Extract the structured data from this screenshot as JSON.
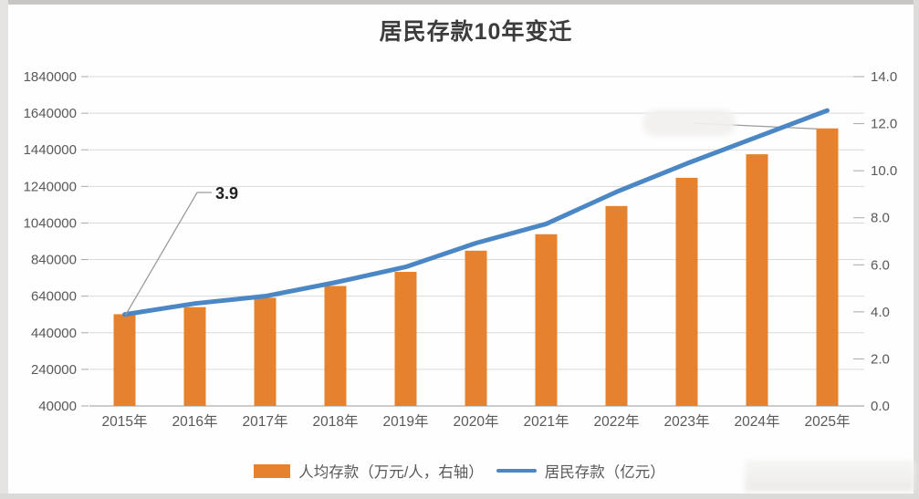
{
  "chart_data": {
    "type": "combo",
    "title": "居民存款10年变迁",
    "categories": [
      "2015年",
      "2016年",
      "2017年",
      "2018年",
      "2019年",
      "2020年",
      "2021年",
      "2022年",
      "2023年",
      "2024年",
      "2025年"
    ],
    "series": [
      {
        "name": "人均存款（万元/人，右轴）",
        "type": "bar",
        "axis": "right",
        "color": "#e6822e",
        "values": [
          3.9,
          4.2,
          4.6,
          5.1,
          5.7,
          6.6,
          7.3,
          8.5,
          9.7,
          10.7,
          11.8
        ]
      },
      {
        "name": "居民存款（亿元）",
        "type": "line",
        "axis": "left",
        "color": "#4c87c5",
        "values": [
          540000,
          600000,
          640000,
          715000,
          800000,
          930000,
          1035000,
          1210000,
          1365000,
          1510000,
          1655000
        ]
      }
    ],
    "left_axis": {
      "min": 40000,
      "max": 1840000,
      "step": 200000,
      "tick_labels": [
        "1840000",
        "1640000",
        "1440000",
        "1240000",
        "1040000",
        "840000",
        "640000",
        "440000",
        "240000",
        "40000"
      ]
    },
    "right_axis": {
      "min": 0.0,
      "max": 14.0,
      "step": 2.0,
      "tick_labels": [
        "14.0",
        "12.0",
        "10.0",
        "8.0",
        "6.0",
        "4.0",
        "2.0",
        "0.0"
      ]
    },
    "annotations": [
      {
        "label": "3.9",
        "series": "人均存款（万元/人，右轴）",
        "category": "2015年"
      }
    ],
    "legend_position": "bottom",
    "grid": true,
    "styles": {
      "grid_color": "#d9d9d9",
      "axis_line_color": "#b0aeac",
      "tick_color": "#a8a8a8",
      "axis_text_color": "#595959",
      "annotation_text_color": "#212121",
      "leader_line_color": "#9b9b9b"
    }
  }
}
